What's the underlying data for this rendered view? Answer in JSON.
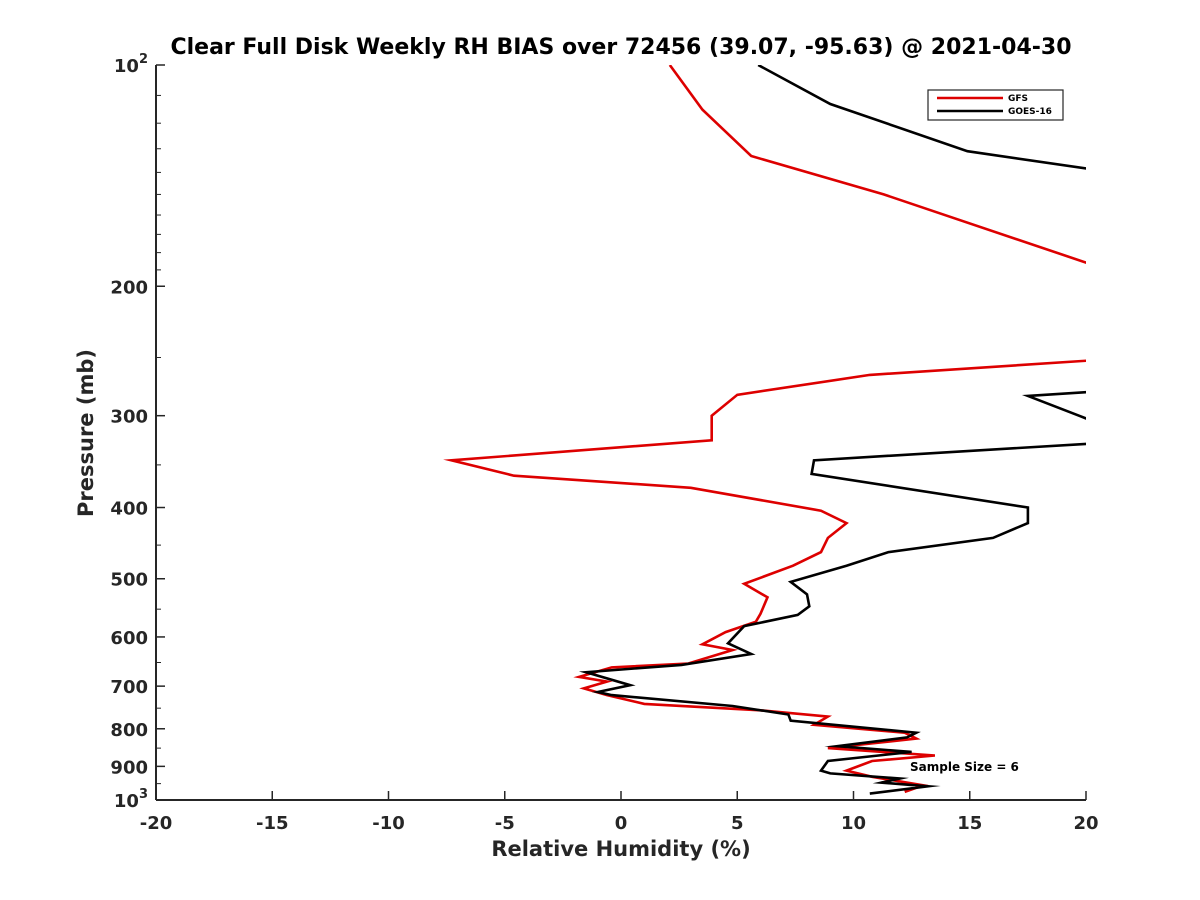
{
  "chart_data": {
    "type": "line",
    "title": "Clear Full Disk Weekly RH BIAS over 72456 (39.07, -95.63) @ 2021-04-30",
    "xlabel": "Relative Humidity (%)",
    "ylabel": "Pressure (mb)",
    "xlim": [
      -20,
      20
    ],
    "ylim": [
      100,
      1000
    ],
    "yscale": "log",
    "y_reversed": true,
    "x_ticks": [
      -20,
      -15,
      -10,
      -5,
      0,
      5,
      10,
      15,
      20
    ],
    "x_tick_labels": [
      "-20",
      "-15",
      "-10",
      "-5",
      "0",
      "5",
      "10",
      "15",
      "20"
    ],
    "y_ticks": [
      100,
      200,
      300,
      400,
      500,
      600,
      700,
      800,
      900,
      1000
    ],
    "y_tick_labels": [
      {
        "base": "10",
        "exp": "2"
      },
      {
        "base": "200",
        "exp": ""
      },
      {
        "base": "300",
        "exp": ""
      },
      {
        "base": "400",
        "exp": ""
      },
      {
        "base": "500",
        "exp": ""
      },
      {
        "base": "600",
        "exp": ""
      },
      {
        "base": "700",
        "exp": ""
      },
      {
        "base": "800",
        "exp": ""
      },
      {
        "base": "900",
        "exp": ""
      },
      {
        "base": "10",
        "exp": "3"
      }
    ],
    "legend_location": "top-right",
    "annotation": "Sample Size = 6",
    "series": [
      {
        "name": "GFS",
        "color": "#dd0000",
        "points": [
          [
            2.1,
            100
          ],
          [
            3.5,
            115
          ],
          [
            5.6,
            133
          ],
          [
            11.3,
            150
          ],
          [
            20.5,
            188
          ],
          [
            null,
            null
          ],
          [
            20.5,
            252
          ],
          [
            10.7,
            264
          ],
          [
            5.0,
            281
          ],
          [
            3.9,
            300
          ],
          [
            3.9,
            324
          ],
          [
            -7.3,
            345
          ],
          [
            -4.6,
            362
          ],
          [
            3.0,
            376
          ],
          [
            8.6,
            404
          ],
          [
            9.7,
            420
          ],
          [
            8.9,
            440
          ],
          [
            8.6,
            460
          ],
          [
            7.4,
            480
          ],
          [
            5.3,
            508
          ],
          [
            6.3,
            530
          ],
          [
            6.0,
            558
          ],
          [
            5.8,
            572
          ],
          [
            4.5,
            591
          ],
          [
            3.5,
            614
          ],
          [
            4.8,
            625
          ],
          [
            2.9,
            652
          ],
          [
            -0.4,
            660
          ],
          [
            -1.8,
            680
          ],
          [
            -0.6,
            690
          ],
          [
            -1.6,
            705
          ],
          [
            -0.6,
            720
          ],
          [
            1.0,
            740
          ],
          [
            6.0,
            755
          ],
          [
            8.9,
            770
          ],
          [
            8.3,
            790
          ],
          [
            12.2,
            810
          ],
          [
            12.7,
            825
          ],
          [
            8.9,
            850
          ],
          [
            13.5,
            870
          ],
          [
            10.8,
            885
          ],
          [
            9.7,
            912
          ],
          [
            10.8,
            930
          ],
          [
            13.0,
            955
          ],
          [
            12.2,
            975
          ]
        ]
      },
      {
        "name": "GOES-16",
        "color": "#000000",
        "points": [
          [
            5.9,
            100
          ],
          [
            9.0,
            113
          ],
          [
            14.9,
            131
          ],
          [
            20.5,
            139
          ],
          [
            null,
            null
          ],
          [
            20.5,
            278
          ],
          [
            17.5,
            282
          ],
          [
            19.7,
            300
          ],
          [
            20.5,
            307
          ],
          [
            null,
            null
          ],
          [
            20.5,
            327
          ],
          [
            8.3,
            345
          ],
          [
            8.2,
            360
          ],
          [
            17.5,
            400
          ],
          [
            17.5,
            420
          ],
          [
            16.0,
            440
          ],
          [
            11.5,
            460
          ],
          [
            9.7,
            480
          ],
          [
            7.3,
            505
          ],
          [
            8.0,
            525
          ],
          [
            8.1,
            545
          ],
          [
            7.6,
            560
          ],
          [
            5.3,
            580
          ],
          [
            4.6,
            612
          ],
          [
            5.6,
            633
          ],
          [
            2.6,
            655
          ],
          [
            -1.5,
            670
          ],
          [
            0.4,
            698
          ],
          [
            -1.0,
            713
          ],
          [
            -0.4,
            720
          ],
          [
            4.8,
            745
          ],
          [
            7.2,
            765
          ],
          [
            7.3,
            780
          ],
          [
            12.7,
            810
          ],
          [
            12.3,
            822
          ],
          [
            9.3,
            845
          ],
          [
            12.5,
            860
          ],
          [
            8.9,
            885
          ],
          [
            8.6,
            912
          ],
          [
            9.0,
            920
          ],
          [
            12.0,
            935
          ],
          [
            11.2,
            947
          ],
          [
            13.2,
            958
          ],
          [
            10.7,
            980
          ]
        ]
      }
    ]
  }
}
